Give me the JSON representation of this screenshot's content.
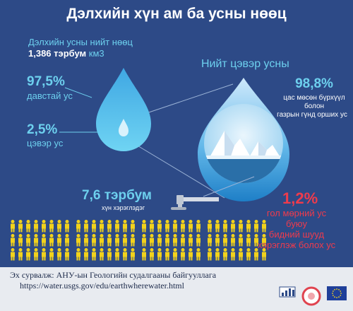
{
  "title": "Дэлхийн хүн ам ба усны нөөц",
  "total": {
    "label": "Дэлхийн усны нийт нөөц",
    "value": "1,386 тэрбум",
    "unit": "км3"
  },
  "salt": {
    "percent": "97,5%",
    "label": "давстай ус"
  },
  "fresh": {
    "percent": "2,5%",
    "label": "цэвэр ус"
  },
  "fresh_total": {
    "title": "Нийт цэвэр усны"
  },
  "ice": {
    "percent": "98,8%",
    "line1": "цас мөсөн бүрхүүл",
    "line2": "болон",
    "line3": "газрын гүнд орших ус"
  },
  "population": {
    "value": "7,6 тэрбум",
    "label": "хүн хэрэглэдэг"
  },
  "usable": {
    "percent": "1,2%",
    "line1": "гол мөрний ус",
    "line2": "буюу",
    "line3": "бидний шууд",
    "line4": "хэрэглэж болох ус"
  },
  "source": {
    "line": "Эх сурвалж: АНУ-ын Геологийн судалгааны байгууллага",
    "url": "https://water.usgs.gov/edu/earthwherewater.html"
  },
  "colors": {
    "background": "#2d4a87",
    "accent": "#6dd0ee",
    "highlight": "#ef3b4c",
    "people": "#f2d21b"
  },
  "icons": [
    "water-drop-icon",
    "iceberg-icon",
    "faucet-icon",
    "person-icon",
    "bar-chart-logo-icon",
    "round-logo-icon",
    "eu-flag-icon"
  ]
}
